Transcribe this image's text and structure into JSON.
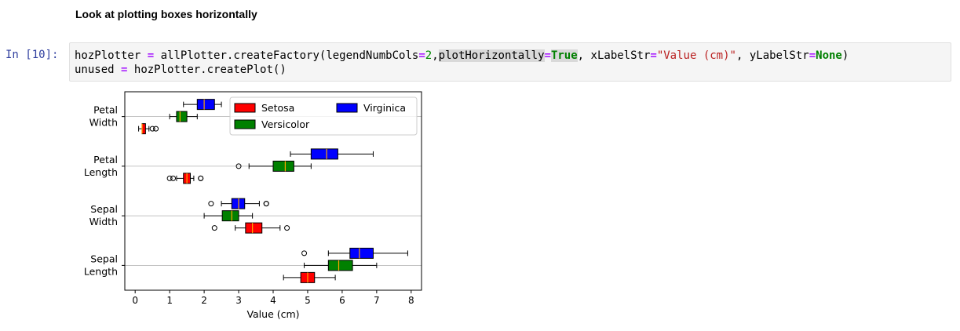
{
  "notebook": {
    "heading": "Look at plotting boxes horizontally",
    "prompt": "In [10]:",
    "code": {
      "line1": {
        "var": "hozPlotter",
        "eq": "=",
        "call": "allPlotter.createFactory(legendNumbCols",
        "eq2": "=",
        "val2": "2",
        "comma_param": ",",
        "param_hl": "plotHorizontally",
        "eq3": "=",
        "val_true": "True",
        "param_x": ", xLabelStr",
        "eq4": "=",
        "val_x": "\"Value (cm)\"",
        "param_y": ", yLabelStr",
        "eq5": "=",
        "val_none": "None",
        "close": ")"
      },
      "line2": {
        "var": "unused",
        "eq": "=",
        "call": "hozPlotter.createPlot()"
      }
    }
  },
  "colors": {
    "setosa": "#ff0000",
    "versicolor": "#008000",
    "virginica": "#0000ff",
    "median": "#ffa500",
    "grid": "#b0b0b0"
  },
  "chart_data": {
    "type": "boxplot",
    "orientation": "horizontal",
    "xlabel": "Value (cm)",
    "xlim": [
      -0.3,
      8.3
    ],
    "xticks": [
      0,
      1,
      2,
      3,
      4,
      5,
      6,
      7,
      8
    ],
    "categories": [
      "Petal\nWidth",
      "Petal\nLength",
      "Sepal\nWidth",
      "Sepal\nLength"
    ],
    "grid": "horizontal lines at category centers",
    "legend": {
      "placement": "top-right",
      "columns": 2
    },
    "series": [
      {
        "name": "Setosa",
        "color": "#ff0000",
        "boxes": [
          {
            "category": 0,
            "whislo": 0.1,
            "q1": 0.2,
            "med": 0.2,
            "q3": 0.3,
            "whishi": 0.4,
            "fliers": [
              0.5,
              0.6
            ]
          },
          {
            "category": 1,
            "whislo": 1.2,
            "q1": 1.4,
            "med": 1.5,
            "q3": 1.6,
            "whishi": 1.7,
            "fliers": [
              1.0,
              1.1,
              1.9,
              1.9
            ]
          },
          {
            "category": 2,
            "whislo": 2.9,
            "q1": 3.2,
            "med": 3.4,
            "q3": 3.675,
            "whishi": 4.2,
            "fliers": [
              2.3,
              4.4
            ]
          },
          {
            "category": 3,
            "whislo": 4.3,
            "q1": 4.8,
            "med": 5.0,
            "q3": 5.2,
            "whishi": 5.8,
            "fliers": []
          }
        ]
      },
      {
        "name": "Versicolor",
        "color": "#008000",
        "boxes": [
          {
            "category": 0,
            "whislo": 1.0,
            "q1": 1.2,
            "med": 1.3,
            "q3": 1.5,
            "whishi": 1.8,
            "fliers": []
          },
          {
            "category": 1,
            "whislo": 3.3,
            "q1": 4.0,
            "med": 4.35,
            "q3": 4.6,
            "whishi": 5.1,
            "fliers": [
              3.0
            ]
          },
          {
            "category": 2,
            "whislo": 2.0,
            "q1": 2.525,
            "med": 2.8,
            "q3": 3.0,
            "whishi": 3.4,
            "fliers": []
          },
          {
            "category": 3,
            "whislo": 4.9,
            "q1": 5.6,
            "med": 5.9,
            "q3": 6.3,
            "whishi": 7.0,
            "fliers": []
          }
        ]
      },
      {
        "name": "Virginica",
        "color": "#0000ff",
        "boxes": [
          {
            "category": 0,
            "whislo": 1.4,
            "q1": 1.8,
            "med": 2.0,
            "q3": 2.3,
            "whishi": 2.5,
            "fliers": []
          },
          {
            "category": 1,
            "whislo": 4.5,
            "q1": 5.1,
            "med": 5.55,
            "q3": 5.875,
            "whishi": 6.9,
            "fliers": []
          },
          {
            "category": 2,
            "whislo": 2.5,
            "q1": 2.8,
            "med": 3.0,
            "q3": 3.175,
            "whishi": 3.6,
            "fliers": [
              2.2,
              3.8,
              3.8
            ]
          },
          {
            "category": 3,
            "whislo": 5.6,
            "q1": 6.225,
            "med": 6.5,
            "q3": 6.9,
            "whishi": 7.9,
            "fliers": [
              4.9
            ]
          }
        ]
      }
    ]
  }
}
